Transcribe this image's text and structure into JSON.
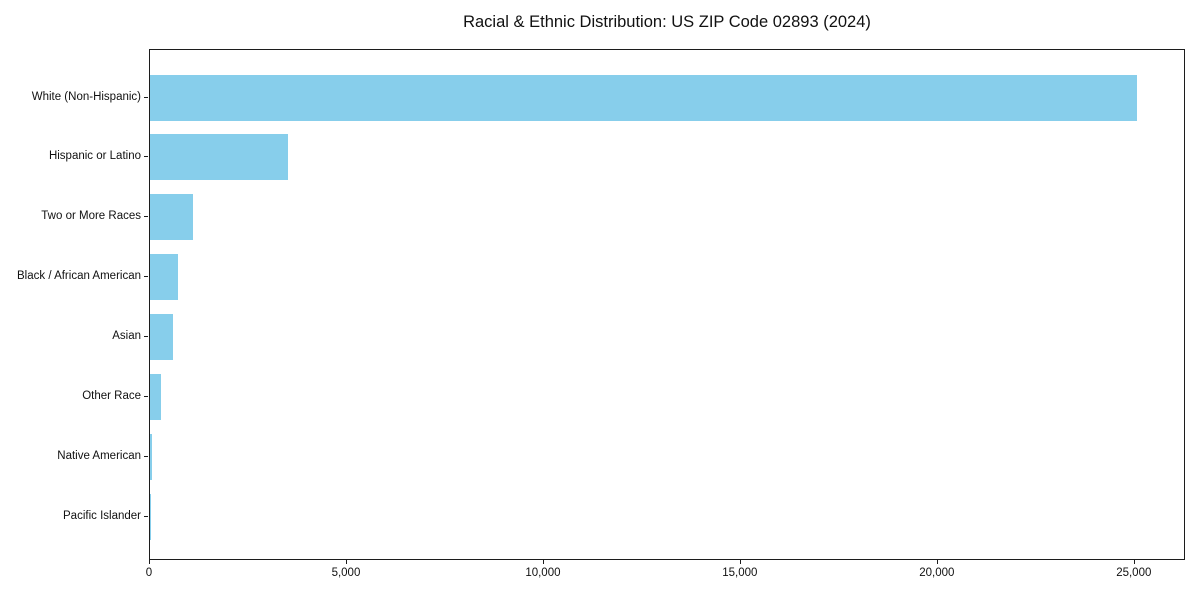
{
  "chart_data": {
    "type": "bar",
    "orientation": "horizontal",
    "title": "Racial & Ethnic Distribution: US ZIP Code 02893 (2024)",
    "categories": [
      "White (Non-Hispanic)",
      "Hispanic or Latino",
      "Two or More Races",
      "Black / African American",
      "Asian",
      "Other Race",
      "Native American",
      "Pacific Islander"
    ],
    "values": [
      25050,
      3500,
      1090,
      710,
      580,
      280,
      40,
      10
    ],
    "xlabel": "",
    "ylabel": "",
    "xlim": [
      0,
      26300
    ],
    "x_ticks": [
      0,
      5000,
      10000,
      15000,
      20000,
      25000
    ],
    "x_tick_labels": [
      "0",
      "5,000",
      "10,000",
      "15,000",
      "20,000",
      "25,000"
    ],
    "bar_color": "#87CEEB",
    "grid": false,
    "legend": false
  }
}
